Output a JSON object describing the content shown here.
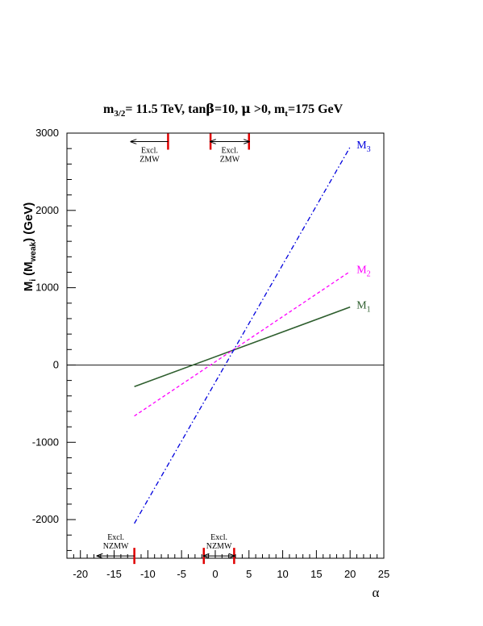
{
  "chart_data": {
    "type": "line",
    "title": "m3/2= 11.5 TeV, tanβ=10, μ >0, mt=175 GeV",
    "title_parts": {
      "a": "m",
      "a_sub": "3/2",
      "b": "= 11.5 TeV, tan",
      "c": "β",
      "d": "=10, ",
      "e": "μ",
      "f": " >0, m",
      "f_sub": "t",
      "g": "=175 GeV"
    },
    "xlabel": "α",
    "ylabel": "Mi (Mweak) (GeV)",
    "ylabel_parts": {
      "a": "M",
      "a_sub": "i",
      "b": " (M",
      "b_sub": "weak",
      "c": ") (GeV)"
    },
    "xlim": [
      -22,
      25
    ],
    "ylim": [
      -2500,
      3000
    ],
    "xticks": [
      -20,
      -15,
      -10,
      -5,
      0,
      5,
      10,
      15,
      20,
      25
    ],
    "yticks": [
      -2000,
      -1000,
      0,
      1000,
      2000,
      3000
    ],
    "grid": false,
    "series": [
      {
        "name": "M1",
        "label_main": "M",
        "label_sub": "1",
        "color": "#2e5e2e",
        "dash": "solid",
        "x": [
          -12,
          20
        ],
        "y": [
          -280,
          750
        ]
      },
      {
        "name": "M2",
        "label_main": "M",
        "label_sub": "2",
        "color": "#ff00ff",
        "dash": "dashed",
        "x": [
          -12,
          20
        ],
        "y": [
          -660,
          1210
        ]
      },
      {
        "name": "M3",
        "label_main": "M",
        "label_sub": "3",
        "color": "#0000dd",
        "dash": "dashdot",
        "x": [
          -12,
          20
        ],
        "y": [
          -2050,
          2820
        ]
      }
    ],
    "exclusions": [
      {
        "line1": "Excl.",
        "line2": "ZMW",
        "bars": [
          -7
        ],
        "arrow_from": -7,
        "arrow_to": -12.5,
        "y": 2890,
        "position": "top"
      },
      {
        "line1": "Excl.",
        "line2": "ZMW",
        "bars": [
          -0.7,
          5
        ],
        "arrow_from": -0.7,
        "arrow_to": 5,
        "y": 2890,
        "position": "top",
        "double": true
      },
      {
        "line1": "Excl.",
        "line2": "NZMW",
        "bars": [
          -12
        ],
        "arrow_from": -12,
        "arrow_to": -17.5,
        "y": -2470,
        "position": "bottom"
      },
      {
        "line1": "Excl.",
        "line2": "NZMW",
        "bars": [
          -1.7,
          2.8
        ],
        "arrow_from": -1.7,
        "arrow_to": 2.8,
        "y": -2470,
        "position": "bottom",
        "double": true
      }
    ]
  }
}
